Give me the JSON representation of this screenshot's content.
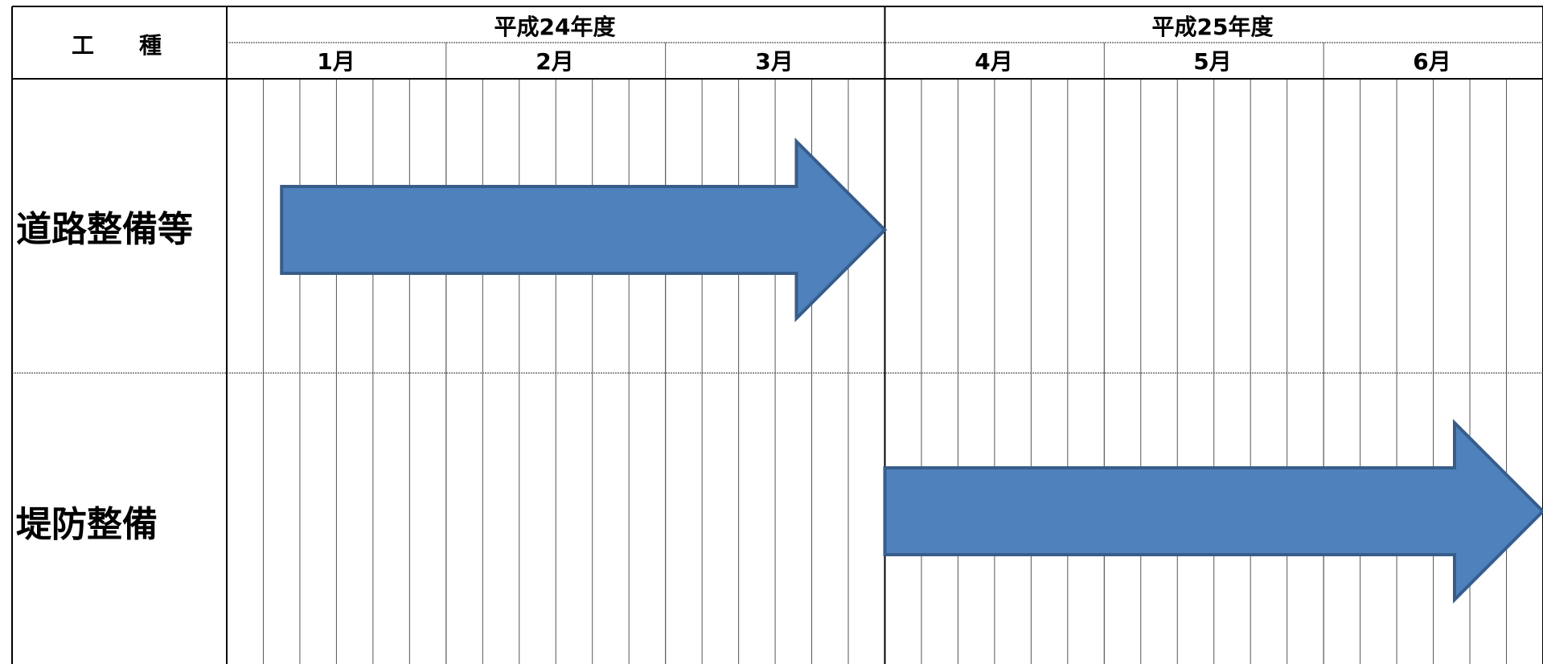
{
  "header": {
    "worktype_label": "工　　種",
    "fiscal_years": [
      {
        "label": "平成24年度",
        "months": [
          "1月",
          "2月",
          "3月"
        ]
      },
      {
        "label": "平成25年度",
        "months": [
          "4月",
          "5月",
          "6月"
        ]
      }
    ]
  },
  "rows": [
    {
      "label": "道路整備等",
      "start_month_index": 0.25,
      "end_month_index": 3.0
    },
    {
      "label": "堤防整備",
      "start_month_index": 3.0,
      "end_month_index": 6.0
    }
  ],
  "colors": {
    "arrow_fill": "#4f81bd",
    "arrow_stroke": "#385d8a",
    "line_major": "#000000",
    "line_minor": "#555555"
  },
  "subdivisions_per_month": 6
}
